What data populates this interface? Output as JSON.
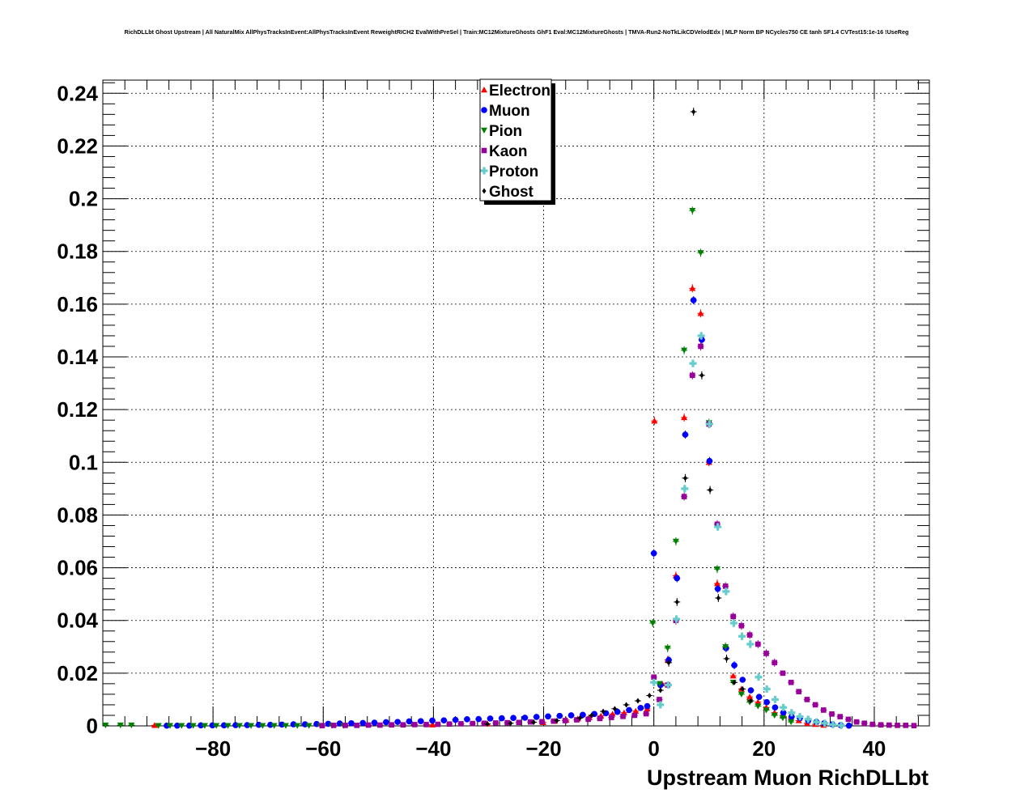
{
  "chart_data": {
    "type": "scatter",
    "title": "RichDLLbt Ghost Upstream | All NaturalMix AllPhysTracksInEvent:AllPhysTracksInEvent ReweightRICH2 EvalWithPreSel | Train:MC12MixtureGhosts GhF1 Eval:MC12MixtureGhosts | TMVA-Run2-NoTkLikCDVelodEdx | MLP Norm BP NCycles750 CE tanh SF1.4 CVTest15:1e-16 !UseReg",
    "xlabel": "Upstream Muon RichDLLbt",
    "ylabel": "",
    "xlim": [
      -100,
      50
    ],
    "ylim": [
      0,
      0.245
    ],
    "xticks": [
      -80,
      -60,
      -40,
      -20,
      0,
      20,
      40
    ],
    "xtick_labels": [
      "−80",
      "−60",
      "−40",
      "−20",
      "0",
      "20",
      "40"
    ],
    "yticks": [
      0,
      0.02,
      0.04,
      0.06,
      0.08,
      0.1,
      0.12,
      0.14,
      0.16,
      0.18,
      0.2,
      0.22,
      0.24
    ],
    "ytick_labels": [
      "0",
      "0.02",
      "0.04",
      "0.06",
      "0.08",
      "0.1",
      "0.12",
      "0.14",
      "0.16",
      "0.18",
      "0.2",
      "0.22",
      "0.24"
    ],
    "grid": true,
    "legend_position": "top-center",
    "series": [
      {
        "name": "Electron",
        "color": "#ff0000",
        "marker": "triangle-up",
        "x": [
          -90.6,
          -40.2,
          -30.2,
          -20.1,
          -18.0,
          -15.9,
          -13.8,
          -11.7,
          -9.6,
          -7.5,
          -5.4,
          -3.3,
          -1.2,
          0.1,
          1.5,
          2.5,
          4.0,
          5.5,
          7.0,
          8.5,
          10.0,
          11.5,
          13.0,
          14.4,
          15.9,
          17.4,
          18.9,
          20.4,
          21.9,
          23.4,
          24.9,
          26.3,
          27.8,
          29.3,
          30.8
        ],
        "y": [
          0.0002,
          0.0004,
          0.0008,
          0.0013,
          0.0018,
          0.0022,
          0.0027,
          0.0032,
          0.0038,
          0.0045,
          0.005,
          0.0056,
          0.0065,
          0.1157,
          0.016,
          0.025,
          0.057,
          0.117,
          0.166,
          0.1565,
          0.1,
          0.054,
          0.03,
          0.019,
          0.014,
          0.011,
          0.009,
          0.007,
          0.005,
          0.004,
          0.003,
          0.002,
          0.001,
          0.0006,
          0.0003
        ]
      },
      {
        "name": "Muon",
        "color": "#0000ff",
        "marker": "circle",
        "x": [
          -88.4,
          -86.5,
          -84.3,
          -82.2,
          -80.1,
          -78.0,
          -75.9,
          -73.8,
          -71.7,
          -69.6,
          -67.5,
          -65.4,
          -63.3,
          -61.2,
          -59.1,
          -57.0,
          -54.9,
          -52.8,
          -50.7,
          -48.6,
          -46.5,
          -44.4,
          -42.3,
          -40.2,
          -38.1,
          -36.0,
          -33.9,
          -31.8,
          -29.7,
          -27.6,
          -25.5,
          -23.4,
          -21.3,
          -19.2,
          -17.1,
          -15.0,
          -12.9,
          -10.8,
          -8.7,
          -6.6,
          -4.5,
          -2.4,
          -1.2,
          0.0,
          1.2,
          2.7,
          4.2,
          5.7,
          7.2,
          8.7,
          10.1,
          11.6,
          13.1,
          14.6,
          16.1,
          17.6,
          19.1,
          20.5,
          22.0,
          23.5,
          25.0,
          26.5,
          28.0,
          29.5,
          30.9,
          32.4,
          33.9,
          35.4
        ],
        "y": [
          0.0001,
          0.0001,
          0.0001,
          0.0002,
          0.0002,
          0.0002,
          0.0003,
          0.0003,
          0.0004,
          0.0004,
          0.0005,
          0.0006,
          0.0006,
          0.0007,
          0.0008,
          0.0009,
          0.001,
          0.0011,
          0.0012,
          0.0014,
          0.0015,
          0.0017,
          0.0018,
          0.002,
          0.0021,
          0.0023,
          0.0025,
          0.0026,
          0.0028,
          0.0029,
          0.003,
          0.0031,
          0.0034,
          0.0036,
          0.0038,
          0.004,
          0.0042,
          0.0045,
          0.0048,
          0.0053,
          0.006,
          0.0068,
          0.0075,
          0.0655,
          0.0155,
          0.025,
          0.056,
          0.1105,
          0.1615,
          0.1465,
          0.1005,
          0.052,
          0.0295,
          0.023,
          0.0175,
          0.0135,
          0.011,
          0.009,
          0.007,
          0.005,
          0.0035,
          0.003,
          0.002,
          0.0015,
          0.001,
          0.0006,
          0.0003,
          0.0001
        ]
      },
      {
        "name": "Pion",
        "color": "#008000",
        "marker": "triangle-down",
        "x": [
          -99.5,
          -96.8,
          -94.8,
          -89.9,
          -87.8,
          -85.7,
          -83.6,
          -81.5,
          -79.4,
          -77.3,
          -75.2,
          -73.1,
          -71.0,
          -68.9,
          -66.8,
          -64.7,
          -62.6,
          -60.5,
          -58.4,
          -56.3,
          -0.2,
          1.0,
          2.5,
          4.0,
          5.5,
          7.0,
          8.5,
          10.0,
          11.5,
          13.0,
          14.4,
          15.9,
          17.4,
          18.9,
          20.4,
          21.9,
          23.4,
          24.9
        ],
        "y": [
          0.0003,
          0.0003,
          0.0003,
          0.0001,
          0.0001,
          0.0001,
          0.0001,
          0.0001,
          0.0001,
          0.0001,
          0.0001,
          0.0001,
          0.0001,
          0.0001,
          0.0001,
          0.0001,
          0.0001,
          0.0001,
          0.0001,
          0.0001,
          0.039,
          0.016,
          0.0295,
          0.07,
          0.1425,
          0.1955,
          0.1795,
          0.115,
          0.0595,
          0.03,
          0.0165,
          0.012,
          0.009,
          0.0075,
          0.006,
          0.004,
          0.003,
          0.0015
        ]
      },
      {
        "name": "Kaon",
        "color": "#990099",
        "marker": "square",
        "x": [
          -60.2,
          -58.1,
          -56.0,
          -53.9,
          -51.8,
          -49.7,
          -47.6,
          -45.5,
          -43.4,
          -41.3,
          -39.2,
          -37.1,
          -35.0,
          -32.9,
          -30.8,
          -28.7,
          -26.6,
          -24.5,
          -22.4,
          -20.3,
          -18.2,
          -16.1,
          -14.0,
          -11.9,
          -9.8,
          -7.7,
          -5.6,
          -3.5,
          -1.4,
          0.0,
          1.0,
          2.5,
          4.0,
          5.5,
          7.0,
          8.5,
          10.0,
          11.5,
          13.0,
          14.4,
          15.9,
          17.4,
          18.9,
          20.4,
          21.9,
          23.4,
          24.9,
          26.3,
          27.8,
          29.3,
          30.8,
          32.3,
          33.8,
          35.3,
          36.8,
          38.2,
          39.7,
          41.2,
          42.7,
          44.2,
          45.7,
          47.2
        ],
        "y": [
          0.0001,
          0.0002,
          0.0002,
          0.0002,
          0.0003,
          0.0003,
          0.0004,
          0.0004,
          0.0005,
          0.0005,
          0.0006,
          0.0007,
          0.0008,
          0.0009,
          0.001,
          0.0011,
          0.0012,
          0.0013,
          0.0015,
          0.0016,
          0.0018,
          0.002,
          0.0023,
          0.0025,
          0.0028,
          0.0032,
          0.0036,
          0.004,
          0.0046,
          0.0185,
          0.01,
          0.0155,
          0.04,
          0.087,
          0.133,
          0.144,
          0.1145,
          0.0765,
          0.053,
          0.0415,
          0.038,
          0.0345,
          0.031,
          0.0275,
          0.024,
          0.02,
          0.0165,
          0.013,
          0.01,
          0.008,
          0.006,
          0.0045,
          0.0035,
          0.0025,
          0.0015,
          0.001,
          0.0006,
          0.0004,
          0.0003,
          0.0002,
          0.0002,
          0.0001
        ]
      },
      {
        "name": "Proton",
        "color": "#66cccc",
        "marker": "cross",
        "x": [
          0.0,
          1.2,
          2.6,
          4.1,
          5.6,
          7.1,
          8.6,
          10.1,
          11.6,
          13.1,
          14.5,
          16.0,
          17.5,
          19.0,
          20.5,
          22.0,
          23.5,
          25.0,
          26.5,
          28.0,
          29.5,
          31.0,
          32.5,
          34.0
        ],
        "y": [
          0.0165,
          0.008,
          0.0155,
          0.0405,
          0.09,
          0.1375,
          0.148,
          0.1145,
          0.0755,
          0.051,
          0.039,
          0.034,
          0.031,
          0.0185,
          0.014,
          0.01,
          0.007,
          0.005,
          0.0035,
          0.0025,
          0.0015,
          0.001,
          0.0005,
          0.0002
        ]
      },
      {
        "name": "Ghost",
        "color": "#000000",
        "marker": "diamond",
        "x": [
          -30.2,
          -26.0,
          -21.8,
          -17.6,
          -13.4,
          -11.3,
          -9.2,
          -7.1,
          -5.0,
          -2.9,
          -0.8,
          1.2,
          2.7,
          4.2,
          5.7,
          7.2,
          8.7,
          10.2,
          11.7,
          13.2,
          14.6,
          16.1,
          17.6
        ],
        "y": [
          0.0007,
          0.001,
          0.0014,
          0.002,
          0.003,
          0.004,
          0.0055,
          0.0065,
          0.008,
          0.0095,
          0.0115,
          0.0135,
          0.024,
          0.047,
          0.094,
          0.233,
          0.133,
          0.0895,
          0.0485,
          0.0255,
          0.0165,
          0.014,
          0.0095
        ]
      }
    ]
  }
}
